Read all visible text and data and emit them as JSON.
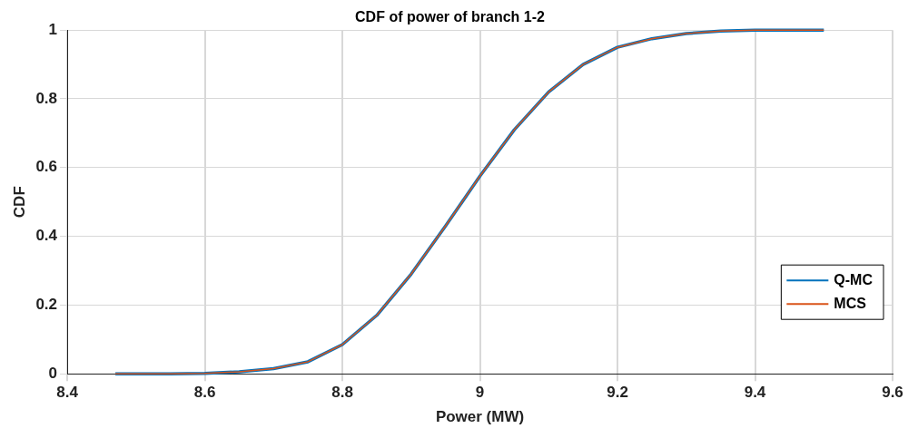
{
  "chart_data": {
    "type": "line",
    "title": "CDF of power of branch 1-2",
    "xlabel": "Power (MW)",
    "ylabel": "CDF",
    "xlim": [
      8.4,
      9.6
    ],
    "xticks": [
      8.4,
      8.6,
      8.8,
      9,
      9.2,
      9.4,
      9.6
    ],
    "ylim": [
      0,
      1
    ],
    "yticks": [
      0,
      0.2,
      0.4,
      0.6,
      0.8,
      1
    ],
    "x": [
      8.47,
      8.55,
      8.6,
      8.65,
      8.7,
      8.75,
      8.8,
      8.85,
      8.9,
      8.95,
      9.0,
      9.05,
      9.1,
      9.15,
      9.2,
      9.25,
      9.3,
      9.35,
      9.4,
      9.5
    ],
    "series": [
      {
        "name": "Q-MC",
        "color": "#0072bd",
        "values": [
          0,
          0,
          0.001,
          0.006,
          0.015,
          0.035,
          0.085,
          0.17,
          0.29,
          0.43,
          0.575,
          0.71,
          0.82,
          0.9,
          0.95,
          0.975,
          0.99,
          0.997,
          1,
          1
        ]
      },
      {
        "name": "MCS",
        "color": "#d95319",
        "values": [
          0,
          0,
          0.001,
          0.006,
          0.015,
          0.035,
          0.085,
          0.17,
          0.29,
          0.43,
          0.575,
          0.71,
          0.82,
          0.9,
          0.95,
          0.975,
          0.99,
          0.997,
          1,
          1
        ]
      }
    ],
    "grid": true,
    "legend": "bottom right",
    "marker": "none",
    "line_style": "solid"
  }
}
